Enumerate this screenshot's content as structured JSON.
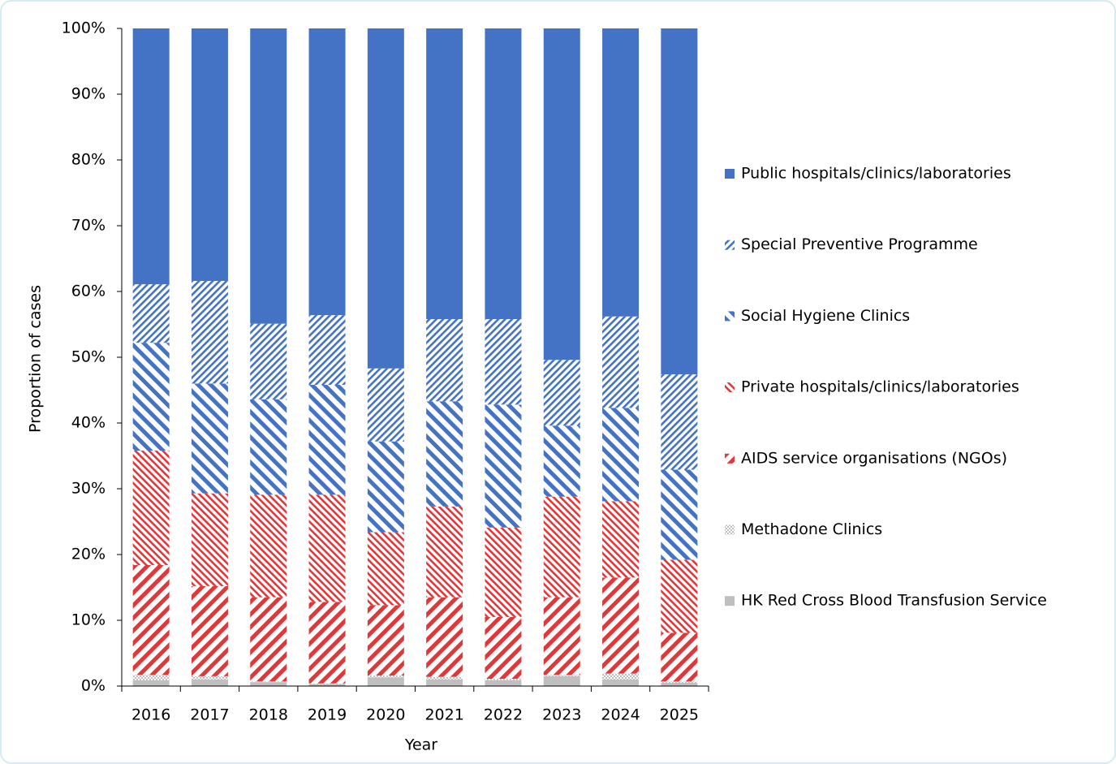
{
  "chart_data": {
    "type": "stacked_bar",
    "x_label": "Year",
    "y_label": "Proportion of cases",
    "categories": [
      "2016",
      "2017",
      "2018",
      "2019",
      "2020",
      "2021",
      "2022",
      "2023",
      "2024",
      "2025"
    ],
    "ylim": [
      0,
      100
    ],
    "yticks": [
      {
        "value": 0,
        "label": "0%"
      },
      {
        "value": 10,
        "label": "10%"
      },
      {
        "value": 20,
        "label": "20%"
      },
      {
        "value": 30,
        "label": "30%"
      },
      {
        "value": 40,
        "label": "40%"
      },
      {
        "value": 50,
        "label": "50%"
      },
      {
        "value": 60,
        "label": "60%"
      },
      {
        "value": 70,
        "label": "70%"
      },
      {
        "value": 80,
        "label": "80%"
      },
      {
        "value": 90,
        "label": "90%"
      },
      {
        "value": 100,
        "label": "100%"
      }
    ],
    "legend": "right",
    "series": [
      {
        "name": "HK Red Cross Blood Transfusion Service",
        "color": "#bfbfbf",
        "pattern": "solid",
        "values": [
          0.9,
          1.0,
          0.6,
          0.3,
          1.3,
          1.0,
          0.9,
          1.5,
          1.0,
          0.5
        ]
      },
      {
        "name": "Methadone Clinics",
        "color": "#bfbfbf",
        "pattern": "checker",
        "values": [
          0.8,
          0.5,
          0.1,
          0.1,
          0.3,
          0.4,
          0.2,
          0.2,
          0.9,
          0.2
        ]
      },
      {
        "name": "AIDS service organisations (NGOs)",
        "color": "#e0383a",
        "pattern": "wide-up-diagonal",
        "values": [
          16.7,
          13.7,
          12.8,
          12.4,
          10.7,
          12.1,
          9.4,
          11.8,
          14.6,
          7.4
        ]
      },
      {
        "name": "Private hospitals/clinics/laboratories",
        "color": "#e0383a",
        "pattern": "light-down-diagonal",
        "values": [
          17.4,
          14.1,
          15.6,
          16.3,
          11.1,
          13.8,
          13.6,
          15.3,
          11.6,
          11.1
        ]
      },
      {
        "name": "Social Hygiene Clinics",
        "color": "#4472c4",
        "pattern": "wide-down-diagonal",
        "values": [
          16.4,
          16.7,
          14.5,
          16.7,
          13.8,
          16.0,
          18.7,
          10.8,
          14.2,
          13.7
        ]
      },
      {
        "name": "Special Preventive Programme",
        "color": "#4472c4",
        "pattern": "light-up-diagonal",
        "values": [
          8.9,
          15.6,
          11.5,
          10.6,
          11.1,
          12.5,
          13.0,
          10.0,
          13.9,
          14.5
        ]
      },
      {
        "name": "Public hospitals/clinics/laboratories",
        "color": "#4472c4",
        "pattern": "solid",
        "values": [
          38.9,
          38.4,
          44.9,
          43.6,
          51.7,
          44.2,
          44.2,
          50.4,
          43.8,
          52.6
        ]
      }
    ]
  }
}
